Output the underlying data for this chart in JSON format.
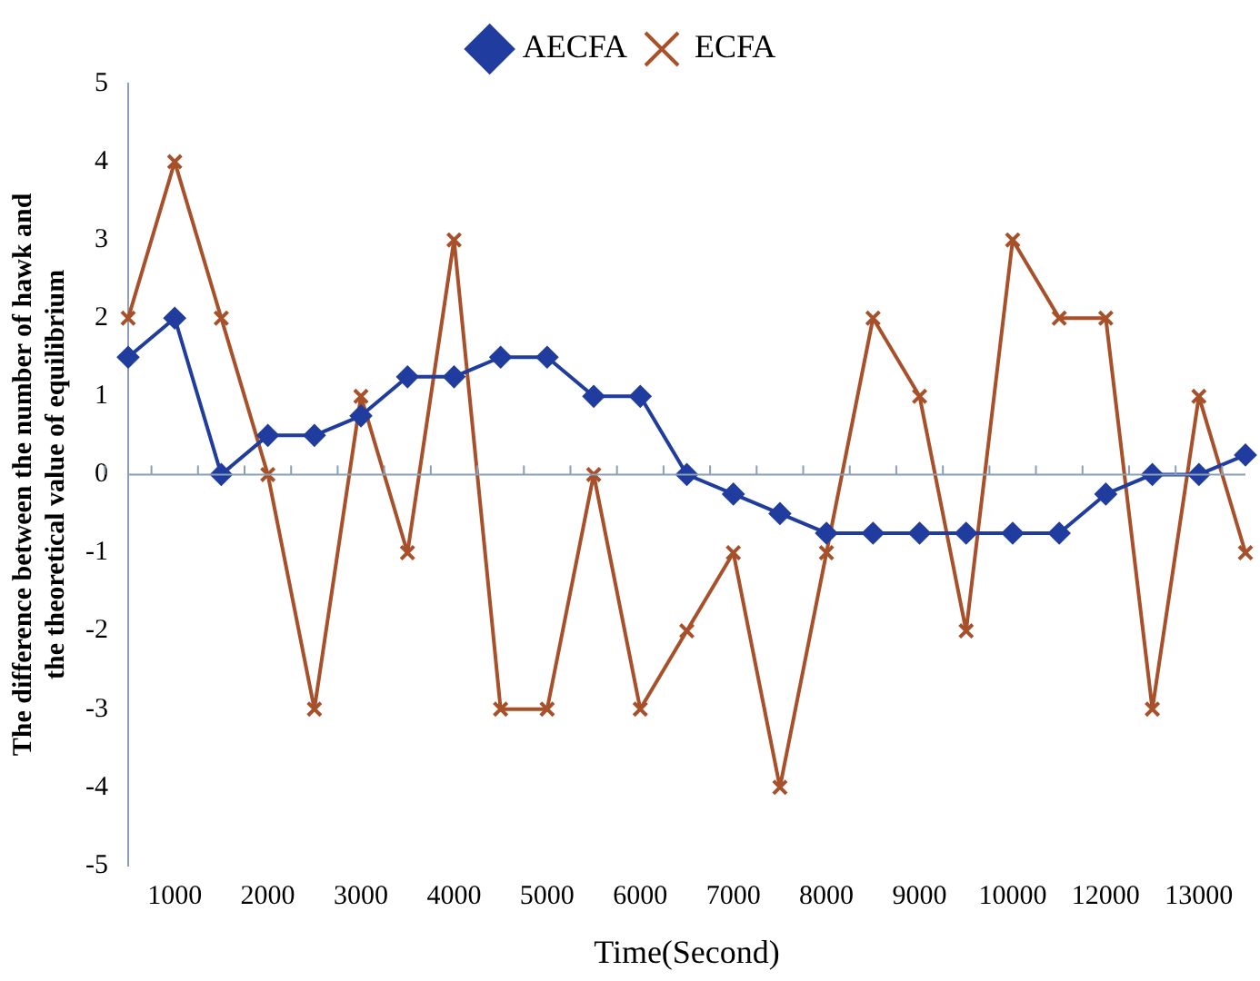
{
  "chart_data": {
    "type": "line",
    "ylabel": "The difference between the number of hawk and the theoretical value of equilibrium",
    "xlabel": "Time(Second)",
    "categories": [
      null,
      "1000",
      null,
      "2000",
      null,
      "3000",
      null,
      "4000",
      null,
      "5000",
      null,
      "6000",
      null,
      "7000",
      null,
      "8000",
      null,
      "9000",
      null,
      "10000",
      null,
      "12000",
      null,
      "13000",
      null
    ],
    "series": [
      {
        "name": "AECFA",
        "color": "#1f3c9e",
        "marker": "diamond",
        "values": [
          1.5,
          2,
          0,
          0.5,
          0.5,
          0.75,
          1.25,
          1.25,
          1.5,
          1.5,
          1,
          1,
          0,
          -0.25,
          -0.5,
          -0.75,
          -0.75,
          -0.75,
          -0.75,
          -0.75,
          -0.75,
          -0.25,
          0,
          0,
          0.25
        ]
      },
      {
        "name": "ECFA",
        "color": "#a8502a",
        "marker": "cross",
        "values": [
          2,
          4,
          2,
          0,
          -3,
          1,
          -1,
          3,
          -3,
          -3,
          0,
          -3,
          -2,
          -1,
          -4,
          -1,
          2,
          1,
          -2,
          3,
          2,
          2,
          -3,
          1,
          -1
        ]
      }
    ],
    "ylim": [
      -5,
      5
    ],
    "yticks": [
      -5,
      -4,
      -3,
      -2,
      -1,
      0,
      1,
      2,
      3,
      4,
      5
    ],
    "ref_lines": [
      {
        "axis": "y",
        "value": 0,
        "color": "#8aa0b8"
      }
    ],
    "grid": false,
    "legend": "top",
    "line_style": "solid"
  }
}
